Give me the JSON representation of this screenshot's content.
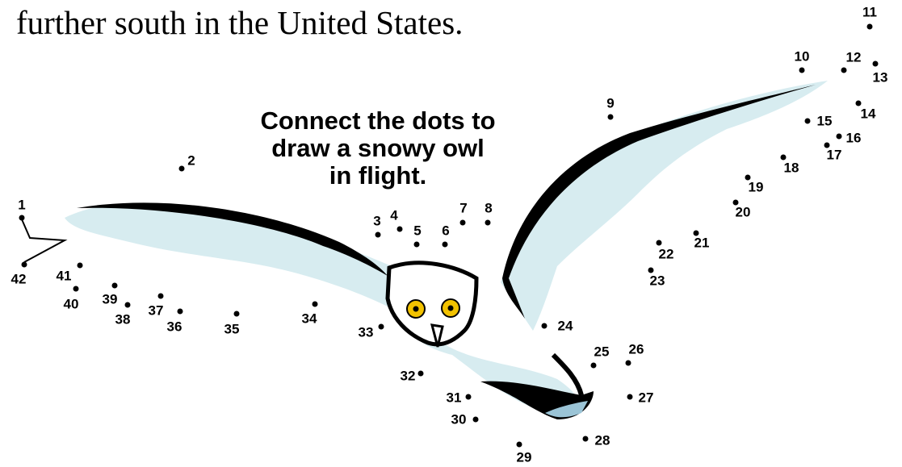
{
  "text": "further south in the United States.",
  "instruction": [
    "Connect the dots to",
    "draw a snowy owl",
    "in flight."
  ],
  "dots": [
    1,
    2,
    3,
    4,
    5,
    6,
    7,
    8,
    9,
    10,
    11,
    12,
    13,
    14,
    15,
    16,
    17,
    18,
    19,
    20,
    21,
    22,
    23,
    24,
    25,
    26,
    27,
    28,
    29,
    30,
    31,
    32,
    33,
    34,
    35,
    36,
    37,
    38,
    39,
    40,
    41,
    42
  ]
}
